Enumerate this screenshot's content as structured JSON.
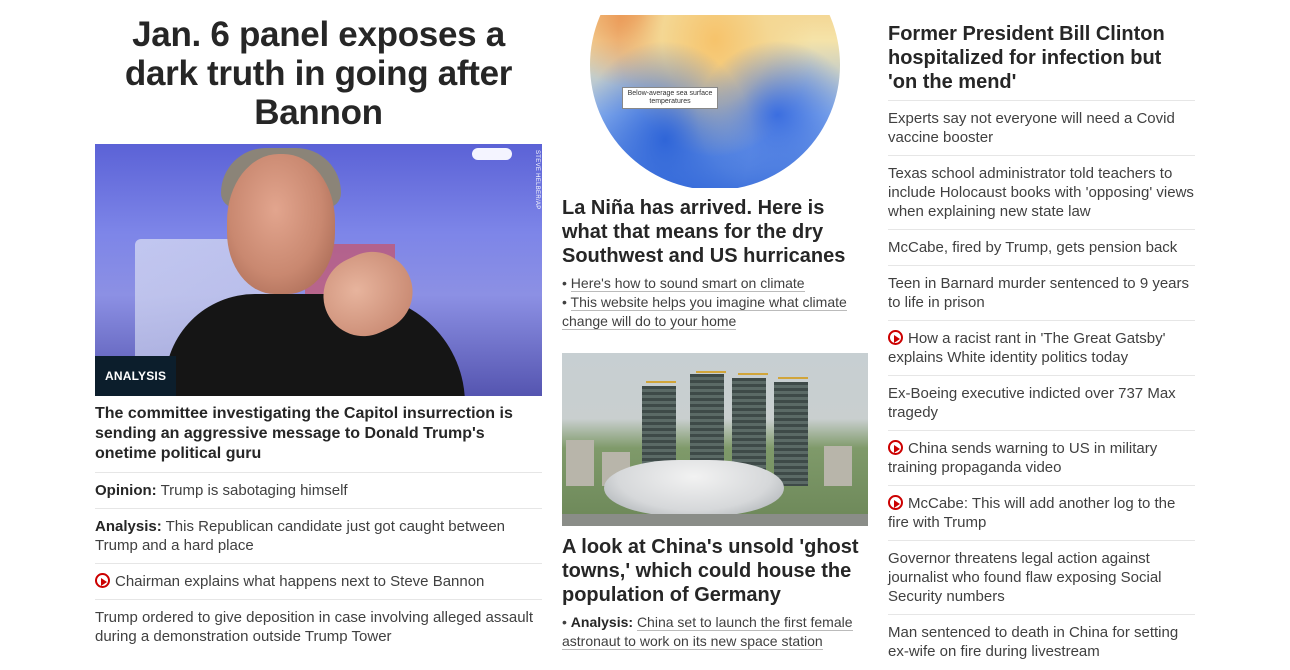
{
  "col1": {
    "hero_title": "Jan. 6 panel exposes a dark truth in going after Bannon",
    "image_credit": "STEVE HELBER/AP",
    "badge": "ANALYSIS",
    "hero_subhead": "The committee investigating the Capitol insurrection is sending an aggressive message to Donald Trump's onetime political guru",
    "items": [
      {
        "prefix": "Opinion:",
        "text": "Trump is sabotaging himself",
        "video": false
      },
      {
        "prefix": "Analysis:",
        "text": "This Republican candidate just got caught between Trump and a hard place",
        "video": false
      },
      {
        "prefix": "",
        "text": "Chairman explains what happens next to Steve Bannon",
        "video": true
      },
      {
        "prefix": "",
        "text": "Trump ordered to give deposition in case involving alleged assault during a demonstration outside Trump Tower",
        "video": false
      }
    ]
  },
  "col2": {
    "globe_label": "Below-average sea surface temperatures",
    "story1_title": "La Niña has arrived. Here is what that means for the dry Southwest and US hurricanes",
    "story1_bullets": [
      {
        "prefix": "",
        "text": "Here's how to sound smart on climate"
      },
      {
        "prefix": "",
        "text": "This website helps you imagine what climate change will do to your home"
      }
    ],
    "story2_title": "A look at China's unsold 'ghost towns,' which could house the population of Germany",
    "story2_bullets": [
      {
        "prefix": "Analysis:",
        "text": "China set to launch the first female astronaut to work on its new space station"
      }
    ]
  },
  "col3": {
    "title": "Former President Bill Clinton hospitalized for infection but 'on the mend'",
    "items": [
      {
        "text": "Experts say not everyone will need a Covid vaccine booster",
        "video": false
      },
      {
        "text": "Texas school administrator told teachers to include Holocaust books with 'opposing' views when explaining new state law",
        "video": false
      },
      {
        "text": "McCabe, fired by Trump, gets pension back",
        "video": false
      },
      {
        "text": "Teen in Barnard murder sentenced to 9 years to life in prison",
        "video": false
      },
      {
        "text": "How a racist rant in 'The Great Gatsby' explains White identity politics today",
        "video": true
      },
      {
        "text": "Ex-Boeing executive indicted over 737 Max tragedy",
        "video": false
      },
      {
        "text": "China sends warning to US in military training propaganda video",
        "video": true
      },
      {
        "text": "McCabe: This will add another log to the fire with Trump",
        "video": true
      },
      {
        "text": "Governor threatens legal action against journalist who found flaw exposing Social Security numbers",
        "video": false
      },
      {
        "text": "Man sentenced to death in China for setting ex-wife on fire during livestream",
        "video": false
      }
    ]
  },
  "icons": {
    "video": "play-circle-icon"
  },
  "colors": {
    "accent_red": "#cc0000",
    "badge_bg": "#0c1e2c"
  }
}
